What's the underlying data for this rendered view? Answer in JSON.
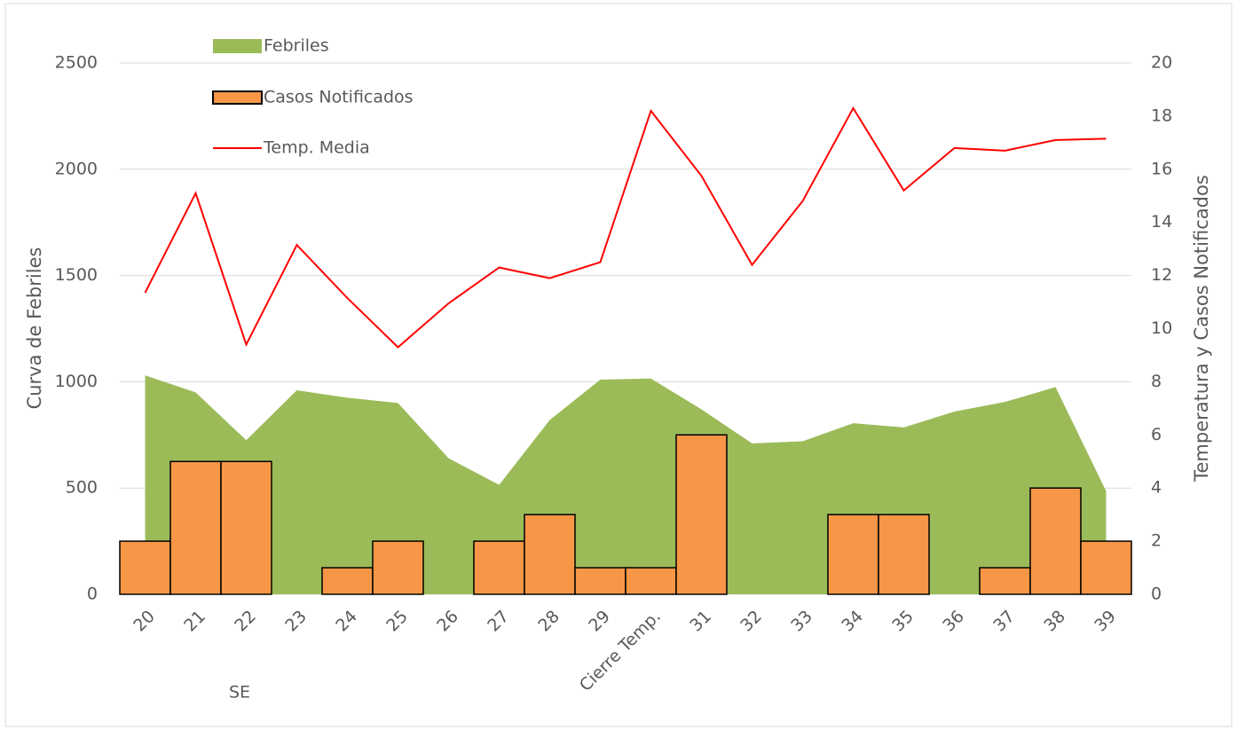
{
  "chart_data": {
    "type": "combo",
    "x_label": "SE",
    "y_label": "Curva de Febriles",
    "y2_label": "Temperatura y Casos Notificados",
    "categories": [
      "20",
      "21",
      "22",
      "23",
      "24",
      "25",
      "26",
      "27",
      "28",
      "29",
      "Cierre Temp.",
      "31",
      "32",
      "33",
      "34",
      "35",
      "36",
      "37",
      "38",
      "39"
    ],
    "series": [
      {
        "name": "Febriles",
        "type": "area",
        "color": "#9bbb59",
        "axis": "y",
        "values": [
          1030,
          950,
          725,
          960,
          925,
          900,
          640,
          515,
          820,
          1010,
          1015,
          870,
          710,
          720,
          805,
          785,
          860,
          905,
          975,
          485
        ]
      },
      {
        "name": "Casos Notificados",
        "type": "bar",
        "color": "#f79646",
        "axis": "y2",
        "values": [
          2,
          5,
          5,
          0,
          1,
          2,
          0,
          2,
          3,
          1,
          1,
          6,
          0,
          0,
          3,
          3,
          0,
          1,
          4,
          2
        ]
      },
      {
        "name": "Temp. Media",
        "type": "line",
        "color": "#ff0000",
        "axis": "y2",
        "values": [
          11.35,
          15.1,
          9.4,
          13.15,
          11.15,
          9.3,
          10.95,
          12.3,
          11.9,
          12.5,
          18.2,
          15.75,
          12.4,
          14.8,
          18.3,
          15.2,
          16.8,
          16.7,
          17.1,
          17.15
        ]
      }
    ],
    "ylim": [
      0,
      2500
    ],
    "yticks": [
      0,
      500,
      1000,
      1500,
      2000,
      2500
    ],
    "y2lim": [
      0,
      20
    ],
    "y2ticks": [
      0,
      2,
      4,
      6,
      8,
      10,
      12,
      14,
      16,
      18,
      20
    ],
    "grid": true
  }
}
